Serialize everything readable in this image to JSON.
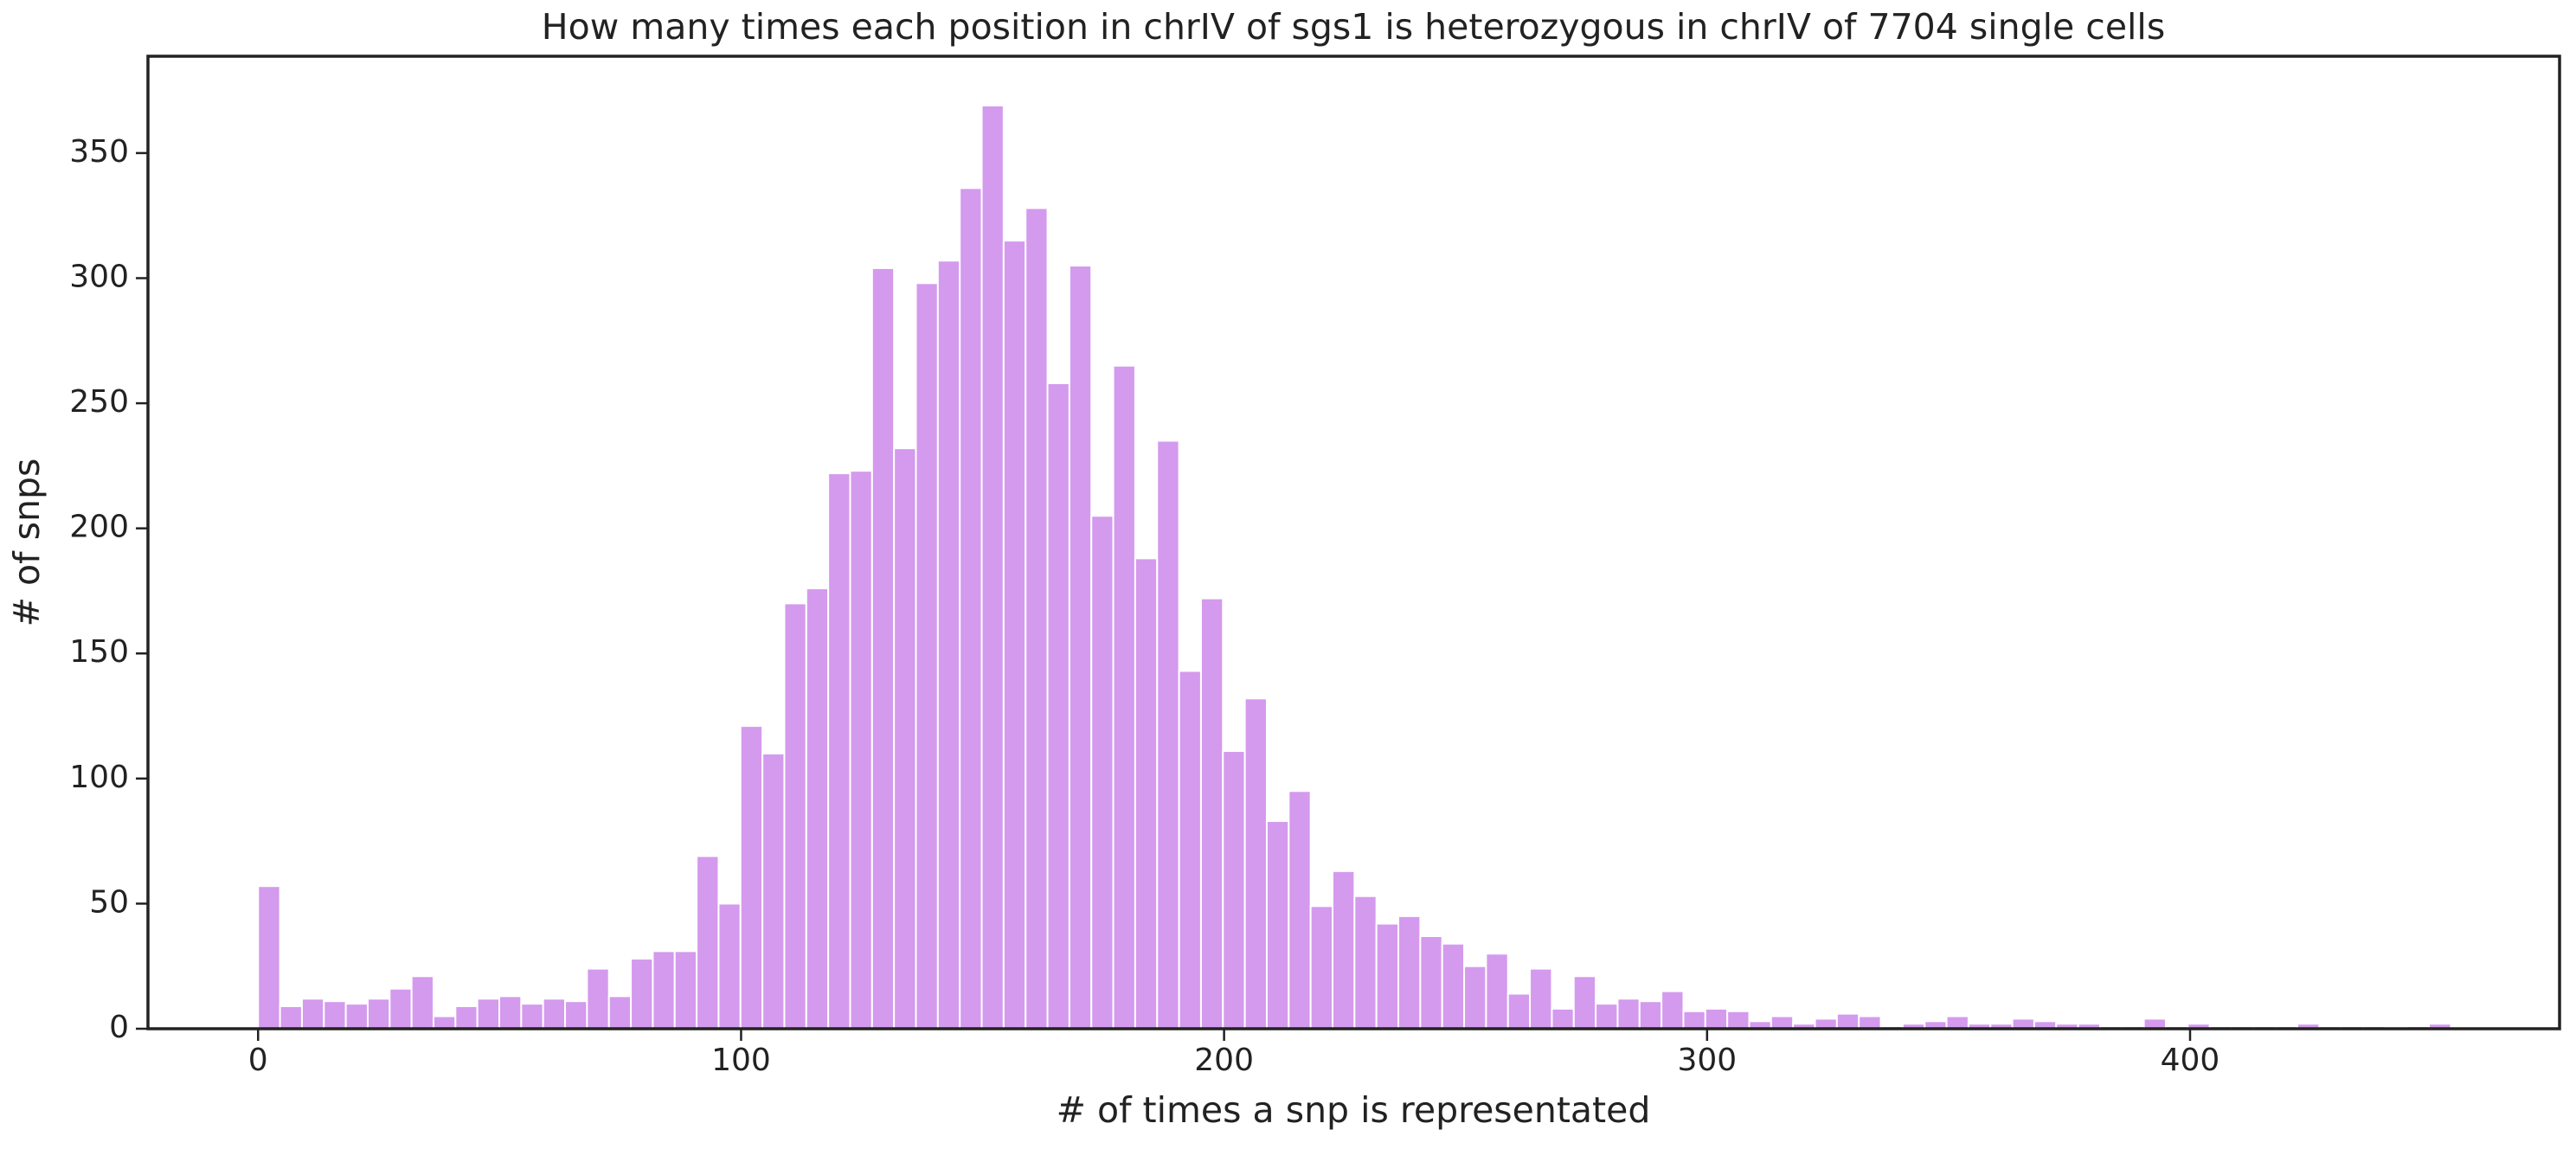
{
  "chart_data": {
    "type": "histogram",
    "title": "How many times each position in chrIV of sgs1 is heterozygous in chrIV of 7704 single cells",
    "x_label": "# of times a snp is representated",
    "y_label": "# of snps",
    "color": "#d49aee",
    "edge_color": "#ffffff",
    "bins": [
      0,
      4.54,
      9.08,
      13.62,
      18.16,
      22.7,
      27.24,
      31.78,
      36.32,
      40.86,
      45.4,
      49.94,
      54.48,
      59.02,
      63.56,
      68.1,
      72.64,
      77.18,
      81.72,
      86.26,
      90.8,
      95.34,
      99.88,
      104.42,
      108.96,
      113.5,
      118.04,
      122.58,
      127.12,
      131.66,
      136.2,
      140.74,
      145.28,
      149.82,
      154.36,
      158.9,
      163.44,
      167.98,
      172.52,
      177.06,
      181.6,
      186.14,
      190.68,
      195.22,
      199.76,
      204.3,
      208.84,
      213.38,
      217.92,
      222.46,
      227,
      231.54,
      236.08,
      240.62,
      245.16,
      249.7,
      254.24,
      258.78,
      263.32,
      267.86,
      272.4,
      276.94,
      281.48,
      286.02,
      290.56,
      295.1,
      299.64,
      304.18,
      308.72,
      313.26,
      317.8,
      322.34,
      326.88,
      331.42,
      335.96,
      340.5,
      345.04,
      349.58,
      354.12,
      358.66,
      363.2,
      367.74,
      372.28,
      376.82,
      381.36,
      385.9,
      390.44,
      394.98,
      399.52,
      404.06,
      408.6,
      413.14,
      417.68,
      422.22,
      426.76,
      431.3,
      435.84,
      440.38,
      444.92,
      449.46,
      454
    ],
    "values": [
      57,
      9,
      12,
      11,
      10,
      12,
      16,
      21,
      5,
      9,
      12,
      13,
      10,
      12,
      11,
      24,
      13,
      28,
      31,
      31,
      69,
      50,
      121,
      110,
      170,
      176,
      222,
      223,
      304,
      232,
      298,
      307,
      336,
      369,
      315,
      328,
      258,
      305,
      205,
      265,
      188,
      235,
      143,
      172,
      111,
      132,
      83,
      95,
      49,
      63,
      53,
      42,
      45,
      37,
      34,
      25,
      30,
      14,
      24,
      8,
      21,
      10,
      12,
      11,
      15,
      7,
      8,
      7,
      3,
      5,
      2,
      4,
      6,
      5,
      1,
      2,
      3,
      5,
      2,
      2,
      4,
      3,
      2,
      2,
      1,
      1,
      4,
      1,
      2,
      1,
      1,
      1,
      1,
      2,
      1,
      1,
      1,
      0,
      1,
      2
    ],
    "xlim": [
      -22.8,
      476.5
    ],
    "ylim": [
      0,
      388.7
    ],
    "xticks": [
      0,
      100,
      200,
      300,
      400
    ],
    "yticks": [
      0,
      50,
      100,
      150,
      200,
      250,
      300,
      350
    ],
    "grid": false
  }
}
